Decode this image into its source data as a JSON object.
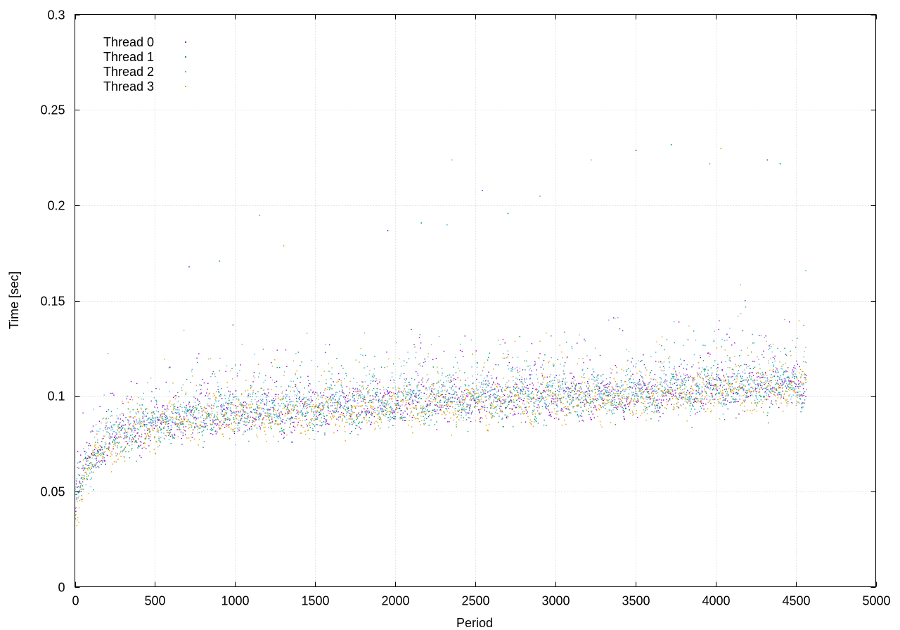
{
  "chart_data": {
    "type": "scatter",
    "title": "",
    "xlabel": "Period",
    "ylabel": "Time [sec]",
    "xlim": [
      0,
      5000
    ],
    "ylim": [
      0,
      0.3
    ],
    "x_ticks": [
      0,
      500,
      1000,
      1500,
      2000,
      2500,
      3000,
      3500,
      4000,
      4500,
      5000
    ],
    "x_tick_labels": [
      "0",
      "500",
      "1000",
      "1500",
      "2000",
      "2500",
      "3000",
      "3500",
      "4000",
      "4500",
      "5000"
    ],
    "y_ticks": [
      0,
      0.05,
      0.1,
      0.15,
      0.2,
      0.25,
      0.3
    ],
    "y_tick_labels": [
      "0",
      "0.05",
      "0.1",
      "0.15",
      "0.2",
      "0.25",
      "0.3"
    ],
    "grid": true,
    "legend_position": "top-left",
    "x_range_of_data": [
      0,
      4565
    ],
    "series": [
      {
        "name": "Thread 0",
        "color": "#9400d3",
        "points": [
          [
            0,
            0.043
          ],
          [
            25,
            0.05
          ],
          [
            50,
            0.058
          ],
          [
            100,
            0.066
          ],
          [
            150,
            0.072
          ],
          [
            200,
            0.076
          ],
          [
            300,
            0.079
          ],
          [
            400,
            0.082
          ],
          [
            500,
            0.085
          ],
          [
            600,
            0.087
          ],
          [
            700,
            0.088
          ],
          [
            800,
            0.089
          ],
          [
            900,
            0.09
          ],
          [
            1000,
            0.091
          ],
          [
            1200,
            0.092
          ],
          [
            1400,
            0.093
          ],
          [
            1600,
            0.094
          ],
          [
            1800,
            0.095
          ],
          [
            2000,
            0.096
          ],
          [
            2200,
            0.097
          ],
          [
            2500,
            0.098
          ],
          [
            2800,
            0.099
          ],
          [
            3000,
            0.099
          ],
          [
            3200,
            0.1
          ],
          [
            3500,
            0.1
          ],
          [
            3800,
            0.102
          ],
          [
            4000,
            0.104
          ],
          [
            4200,
            0.104
          ],
          [
            4400,
            0.105
          ],
          [
            4565,
            0.106
          ]
        ]
      },
      {
        "name": "Thread 1",
        "color": "#009e73",
        "points": [
          [
            0,
            0.041
          ],
          [
            25,
            0.049
          ],
          [
            50,
            0.057
          ],
          [
            100,
            0.065
          ],
          [
            150,
            0.071
          ],
          [
            200,
            0.075
          ],
          [
            300,
            0.078
          ],
          [
            400,
            0.081
          ],
          [
            500,
            0.084
          ],
          [
            600,
            0.086
          ],
          [
            700,
            0.087
          ],
          [
            800,
            0.088
          ],
          [
            900,
            0.089
          ],
          [
            1000,
            0.09
          ],
          [
            1200,
            0.091
          ],
          [
            1400,
            0.092
          ],
          [
            1600,
            0.093
          ],
          [
            1800,
            0.094
          ],
          [
            2000,
            0.095
          ],
          [
            2200,
            0.096
          ],
          [
            2500,
            0.097
          ],
          [
            2800,
            0.098
          ],
          [
            3000,
            0.098
          ],
          [
            3200,
            0.099
          ],
          [
            3500,
            0.099
          ],
          [
            3800,
            0.101
          ],
          [
            4000,
            0.103
          ],
          [
            4200,
            0.103
          ],
          [
            4400,
            0.104
          ],
          [
            4565,
            0.105
          ]
        ]
      },
      {
        "name": "Thread 2",
        "color": "#56b4e9",
        "points": [
          [
            0,
            0.044
          ],
          [
            25,
            0.052
          ],
          [
            50,
            0.06
          ],
          [
            100,
            0.068
          ],
          [
            150,
            0.074
          ],
          [
            200,
            0.078
          ],
          [
            300,
            0.081
          ],
          [
            400,
            0.084
          ],
          [
            500,
            0.087
          ],
          [
            600,
            0.089
          ],
          [
            700,
            0.09
          ],
          [
            800,
            0.091
          ],
          [
            900,
            0.092
          ],
          [
            1000,
            0.093
          ],
          [
            1200,
            0.094
          ],
          [
            1400,
            0.095
          ],
          [
            1600,
            0.096
          ],
          [
            1800,
            0.097
          ],
          [
            2000,
            0.098
          ],
          [
            2200,
            0.099
          ],
          [
            2500,
            0.1
          ],
          [
            2800,
            0.101
          ],
          [
            3000,
            0.101
          ],
          [
            3200,
            0.102
          ],
          [
            3500,
            0.102
          ],
          [
            3800,
            0.104
          ],
          [
            4000,
            0.106
          ],
          [
            4200,
            0.106
          ],
          [
            4400,
            0.107
          ],
          [
            4565,
            0.108
          ]
        ]
      },
      {
        "name": "Thread 3",
        "color": "#e69f00",
        "points": [
          [
            0,
            0.04
          ],
          [
            25,
            0.048
          ],
          [
            50,
            0.056
          ],
          [
            100,
            0.064
          ],
          [
            150,
            0.07
          ],
          [
            200,
            0.074
          ],
          [
            300,
            0.077
          ],
          [
            400,
            0.08
          ],
          [
            500,
            0.083
          ],
          [
            600,
            0.085
          ],
          [
            700,
            0.086
          ],
          [
            800,
            0.087
          ],
          [
            900,
            0.088
          ],
          [
            1000,
            0.089
          ],
          [
            1200,
            0.09
          ],
          [
            1400,
            0.091
          ],
          [
            1600,
            0.092
          ],
          [
            1800,
            0.093
          ],
          [
            2000,
            0.094
          ],
          [
            2200,
            0.095
          ],
          [
            2500,
            0.096
          ],
          [
            2800,
            0.097
          ],
          [
            3000,
            0.097
          ],
          [
            3200,
            0.098
          ],
          [
            3500,
            0.098
          ],
          [
            3800,
            0.1
          ],
          [
            4000,
            0.102
          ],
          [
            4200,
            0.102
          ],
          [
            4400,
            0.103
          ],
          [
            4565,
            0.104
          ]
        ]
      }
    ],
    "outliers": [
      [
        710,
        0.168
      ],
      [
        900,
        0.171
      ],
      [
        1150,
        0.195
      ],
      [
        1300,
        0.179
      ],
      [
        1950,
        0.187
      ],
      [
        2160,
        0.191
      ],
      [
        2320,
        0.19
      ],
      [
        2350,
        0.224
      ],
      [
        2540,
        0.208
      ],
      [
        2700,
        0.196
      ],
      [
        2900,
        0.205
      ],
      [
        3220,
        0.224
      ],
      [
        3500,
        0.229
      ],
      [
        3720,
        0.232
      ],
      [
        3960,
        0.222
      ],
      [
        4030,
        0.23
      ],
      [
        4320,
        0.224
      ],
      [
        4400,
        0.222
      ],
      [
        4560,
        0.166
      ]
    ]
  }
}
